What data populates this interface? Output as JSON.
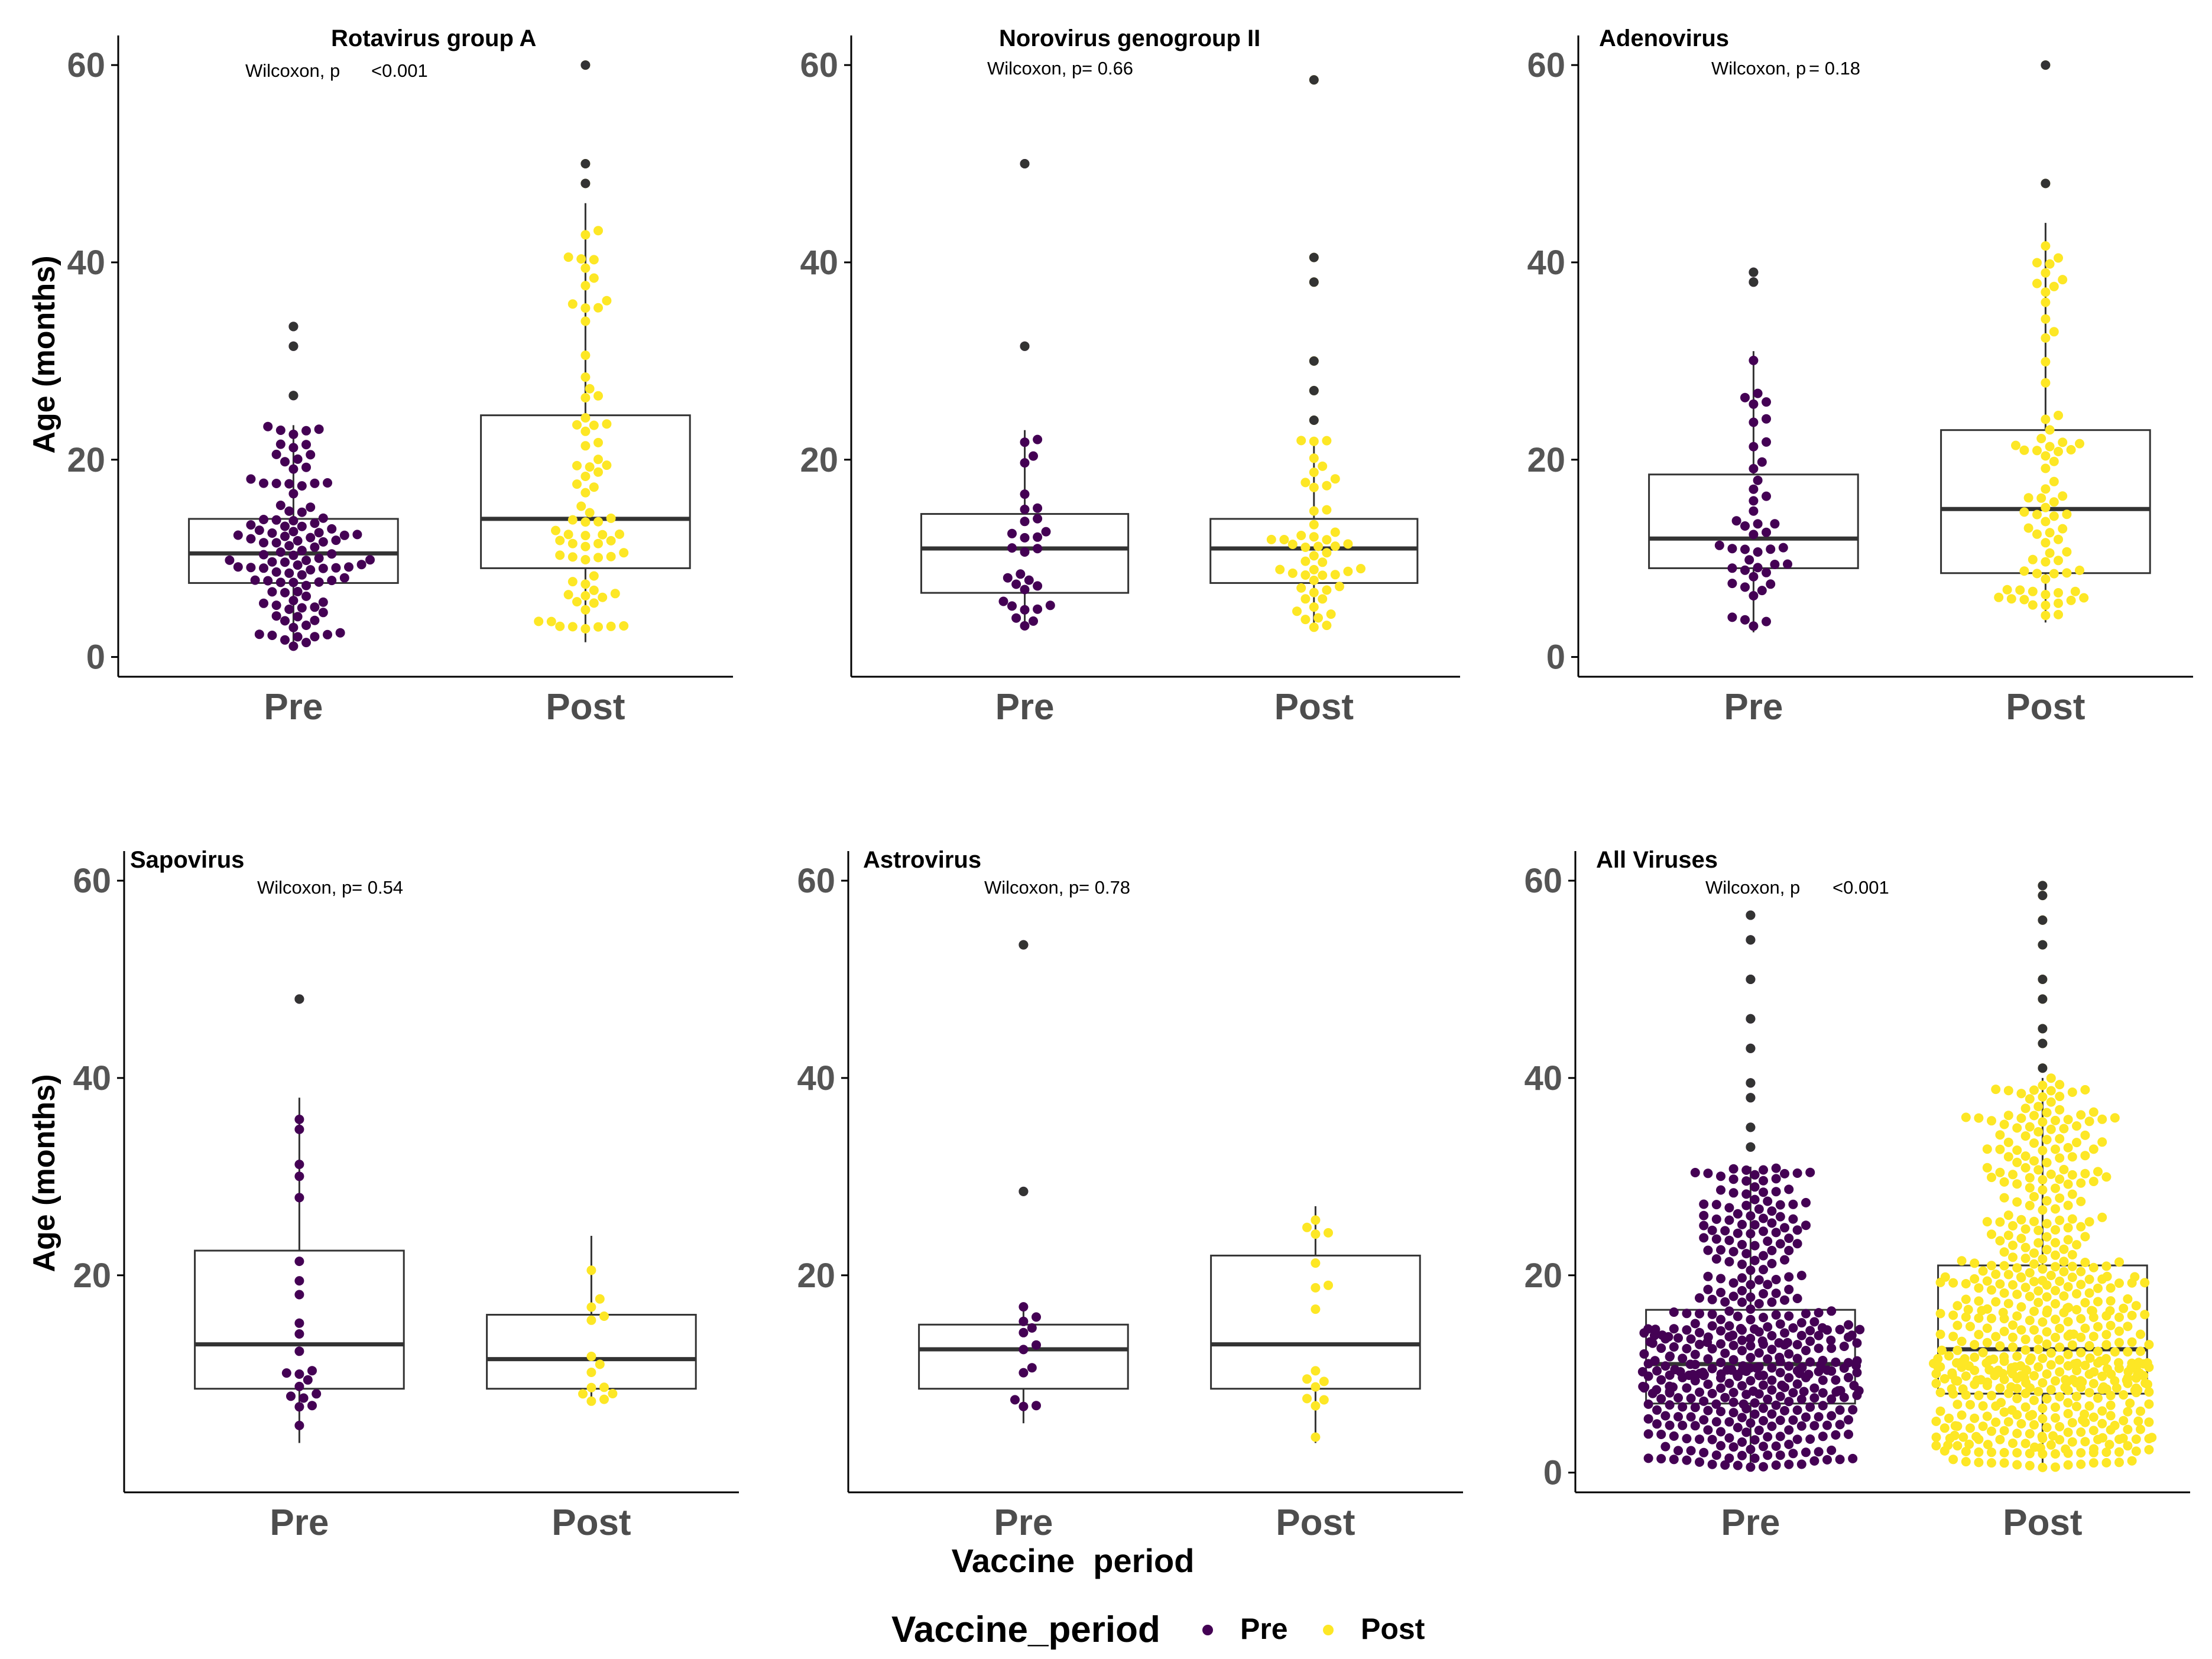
{
  "chart_data": {
    "type": "boxplot",
    "ylabel": "Age (months)",
    "xlabel": "Vaccine  period",
    "legend": {
      "title": "Vaccine_period",
      "entries": [
        {
          "label": "Pre",
          "color": "#440154"
        },
        {
          "label": "Post",
          "color": "#FDE725"
        }
      ]
    },
    "outlier_color": "#333333",
    "panels": [
      {
        "title": "Rotavirus group A",
        "pvalue_prefix": "Wilcoxon, p",
        "pvalue": "<0.001",
        "ylim": [
          -2,
          63
        ],
        "ticks": [
          0,
          20,
          40,
          60
        ],
        "groups": [
          {
            "label": "Pre",
            "n": 110,
            "min": 1,
            "q1": 7.5,
            "median": 10.5,
            "q3": 14,
            "max": 23.5,
            "outliers": [
              31.5,
              33.5,
              26.5
            ]
          },
          {
            "label": "Post",
            "n": 75,
            "min": 1.5,
            "q1": 9,
            "median": 14,
            "q3": 24.5,
            "max": 46,
            "outliers": [
              48,
              50,
              60
            ]
          }
        ]
      },
      {
        "title": "Norovirus genogroup II",
        "pvalue_prefix": "Wilcoxon, p",
        "pvalue": "= 0.66",
        "ylim": [
          -2,
          63
        ],
        "ticks": [
          20,
          40,
          60
        ],
        "groups": [
          {
            "label": "Pre",
            "n": 30,
            "min": 3,
            "q1": 6.5,
            "median": 11,
            "q3": 14.5,
            "max": 23,
            "outliers": [
              31.5,
              50
            ]
          },
          {
            "label": "Post",
            "n": 50,
            "min": 3,
            "q1": 7.5,
            "median": 11,
            "q3": 14,
            "max": 22,
            "outliers": [
              24,
              27,
              30,
              38,
              40.5,
              58.5
            ]
          }
        ]
      },
      {
        "title": "Adenovirus",
        "pvalue_prefix": "Wilcoxon, p",
        "pvalue": "= 0.18",
        "ylim": [
          -2,
          63
        ],
        "ticks": [
          0,
          20,
          40,
          60
        ],
        "groups": [
          {
            "label": "Pre",
            "n": 45,
            "min": 2.5,
            "q1": 9,
            "median": 12,
            "q3": 18.5,
            "max": 31,
            "outliers": [
              38,
              39
            ]
          },
          {
            "label": "Post",
            "n": 75,
            "min": 3.5,
            "q1": 8.5,
            "median": 15,
            "q3": 23,
            "max": 44,
            "outliers": [
              48,
              60
            ]
          }
        ]
      },
      {
        "title": "Sapovirus",
        "pvalue_prefix": "Wilcoxon, p",
        "pvalue": "= 0.54",
        "ylim": [
          -2,
          63
        ],
        "ticks": [
          20,
          40,
          60
        ],
        "groups": [
          {
            "label": "Pre",
            "n": 22,
            "min": 3,
            "q1": 8.5,
            "median": 13,
            "q3": 22.5,
            "max": 38,
            "outliers": [
              48
            ]
          },
          {
            "label": "Post",
            "n": 14,
            "min": 7,
            "q1": 8.5,
            "median": 11.5,
            "q3": 16,
            "max": 24,
            "outliers": []
          }
        ]
      },
      {
        "title": "Astrovirus",
        "pvalue_prefix": "Wilcoxon, p",
        "pvalue": "= 0.78",
        "ylim": [
          -2,
          63
        ],
        "ticks": [
          20,
          40,
          60
        ],
        "groups": [
          {
            "label": "Pre",
            "n": 12,
            "min": 5,
            "q1": 8.5,
            "median": 12.5,
            "q3": 15,
            "max": 17,
            "outliers": [
              28.5,
              53.5
            ]
          },
          {
            "label": "Post",
            "n": 16,
            "min": 3,
            "q1": 8.5,
            "median": 13,
            "q3": 22,
            "max": 27,
            "outliers": []
          }
        ]
      },
      {
        "title": "All Viruses",
        "pvalue_prefix": "Wilcoxon, p",
        "pvalue": "<0.001",
        "ylim": [
          -2,
          63
        ],
        "ticks": [
          0,
          20,
          40,
          60
        ],
        "groups": [
          {
            "label": "Pre",
            "n": 420,
            "min": 0.5,
            "q1": 7,
            "median": 11,
            "q3": 16.5,
            "max": 31,
            "outliers": [
              33,
              35,
              38,
              39.5,
              43,
              46,
              50,
              54,
              56.5
            ]
          },
          {
            "label": "Post",
            "n": 560,
            "min": 0.5,
            "q1": 8,
            "median": 12.5,
            "q3": 21,
            "max": 40,
            "outliers": [
              41,
              43.5,
              45,
              48,
              50,
              53.5,
              56,
              58.5,
              59.5
            ]
          }
        ]
      }
    ]
  }
}
